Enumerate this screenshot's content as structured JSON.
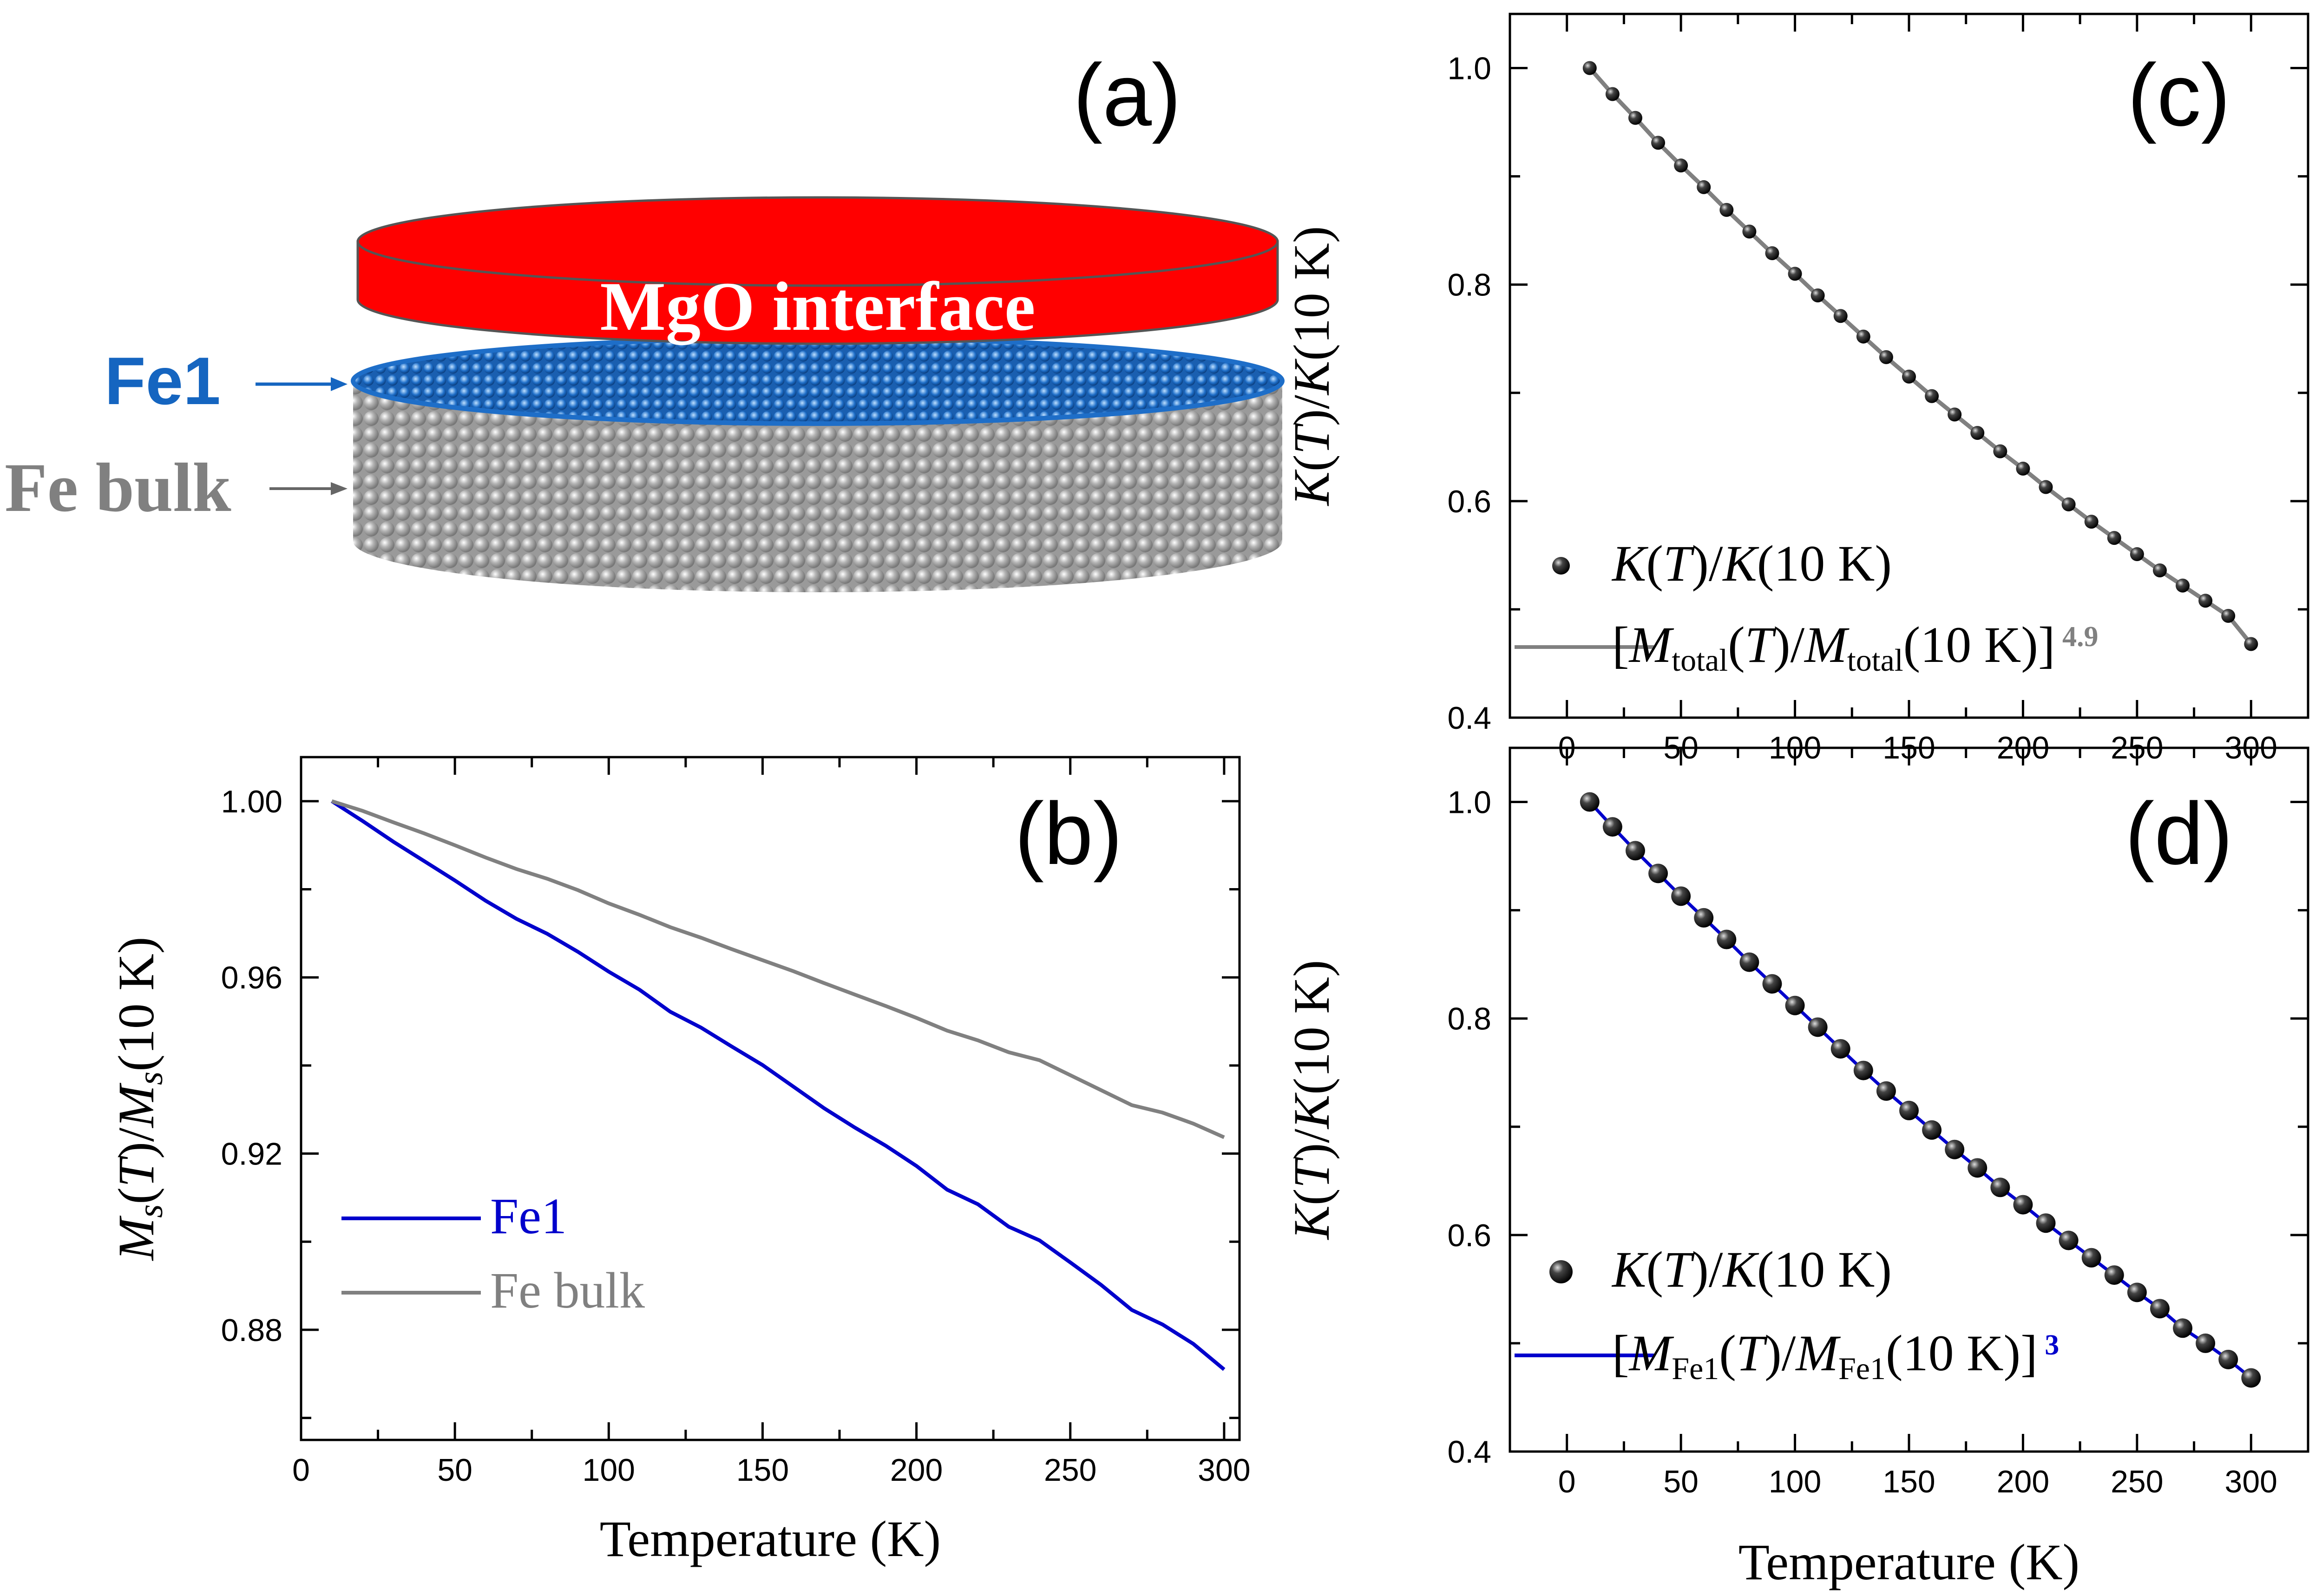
{
  "colors": {
    "fe1": "#0000cc",
    "fe1_label": "#1565c0",
    "bulk": "#808080",
    "mgo": "#ff0000",
    "disc_blue": "#1e6ec8",
    "sphere": "#c8c8c8",
    "axis": "#000000"
  },
  "panel_a": {
    "letter": "(a)",
    "mgo_label": "MgO interface",
    "fe1_label": "Fe1",
    "bulk_label": "Fe bulk"
  },
  "chart_data": [
    {
      "id": "b",
      "type": "line",
      "letter": "(b)",
      "xlabel": "Temperature (K)",
      "ylabel": {
        "parts": [
          "M",
          "s",
          "(T)/M",
          "s",
          "(10 K)"
        ]
      },
      "xlim": [
        0,
        305
      ],
      "ylim": [
        0.855,
        1.01
      ],
      "xticks": [
        0,
        50,
        100,
        150,
        200,
        250,
        300
      ],
      "yticks": [
        0.88,
        0.92,
        0.96,
        1.0
      ],
      "ytick_labels": [
        "0.88",
        "0.92",
        "0.96",
        "1.00"
      ],
      "legend_position": "bottom-left",
      "x": [
        10,
        20,
        30,
        40,
        50,
        60,
        70,
        80,
        90,
        100,
        110,
        120,
        130,
        140,
        150,
        160,
        170,
        180,
        190,
        200,
        210,
        220,
        230,
        240,
        250,
        260,
        270,
        280,
        290,
        300
      ],
      "series": [
        {
          "name": "Fe1",
          "color": "#0000cc",
          "values": [
            1.0,
            0.9955,
            0.9908,
            0.9864,
            0.982,
            0.9774,
            0.9733,
            0.9699,
            0.9658,
            0.9613,
            0.9572,
            0.9522,
            0.9486,
            0.9443,
            0.9401,
            0.9352,
            0.9303,
            0.9259,
            0.9218,
            0.9172,
            0.9118,
            0.9085,
            0.9034,
            0.9003,
            0.8953,
            0.8902,
            0.8845,
            0.8812,
            0.8768,
            0.871
          ]
        },
        {
          "name": "Fe bulk",
          "color": "#808080",
          "values": [
            1.0,
            0.9978,
            0.9952,
            0.9927,
            0.99,
            0.9872,
            0.9846,
            0.9824,
            0.9798,
            0.9768,
            0.9742,
            0.9714,
            0.969,
            0.9664,
            0.9639,
            0.9614,
            0.9587,
            0.9561,
            0.9535,
            0.9508,
            0.9479,
            0.9457,
            0.943,
            0.9412,
            0.9378,
            0.9344,
            0.931,
            0.9293,
            0.9268,
            0.9237
          ]
        }
      ]
    },
    {
      "id": "c",
      "type": "scatter",
      "letter": "(c)",
      "ylabel": {
        "parts": [
          "K",
          "(",
          "T",
          ")/",
          "K",
          "(10 K)"
        ]
      },
      "xlim": [
        -25,
        325
      ],
      "ylim": [
        0.4,
        1.05
      ],
      "xticks": [
        0,
        50,
        100,
        150,
        200,
        250,
        300
      ],
      "yticks": [
        0.4,
        0.6,
        0.8,
        1.0
      ],
      "ytick_labels": [
        "0.4",
        "0.6",
        "0.8",
        "1.0"
      ],
      "legend_position": "bottom-left",
      "legend": {
        "points_label": {
          "parts": [
            "K",
            "(",
            "T",
            ")/",
            "K",
            "(10 K)"
          ]
        },
        "line_label": {
          "parts": [
            "[",
            "M",
            "total",
            "(",
            "T",
            ")/",
            "M",
            "total",
            "(10 K)]"
          ],
          "exponent": "4.9"
        }
      },
      "x": [
        10,
        20,
        30,
        40,
        50,
        60,
        70,
        80,
        90,
        100,
        110,
        120,
        130,
        140,
        150,
        160,
        170,
        180,
        190,
        200,
        210,
        220,
        230,
        240,
        250,
        260,
        270,
        280,
        290,
        300
      ],
      "series": [
        {
          "name": "K(T)/K(10 K)",
          "color": "#000000",
          "marker": "sphere-small",
          "values": [
            1.0,
            0.976,
            0.954,
            0.931,
            0.91,
            0.89,
            0.869,
            0.849,
            0.829,
            0.81,
            0.79,
            0.771,
            0.752,
            0.733,
            0.715,
            0.697,
            0.68,
            0.663,
            0.646,
            0.63,
            0.613,
            0.597,
            0.581,
            0.566,
            0.551,
            0.536,
            0.522,
            0.508,
            0.494,
            0.468
          ]
        },
        {
          "name": "[Mtotal(T)/Mtotal(10 K)]4.9",
          "color": "#808080",
          "style": "line",
          "values": [
            1.0,
            0.976,
            0.954,
            0.931,
            0.91,
            0.89,
            0.869,
            0.849,
            0.829,
            0.81,
            0.79,
            0.771,
            0.752,
            0.733,
            0.715,
            0.697,
            0.68,
            0.663,
            0.646,
            0.63,
            0.613,
            0.597,
            0.581,
            0.566,
            0.551,
            0.536,
            0.522,
            0.508,
            0.494,
            0.468
          ]
        }
      ]
    },
    {
      "id": "d",
      "type": "scatter",
      "letter": "(d)",
      "xlabel": "Temperature (K)",
      "ylabel": {
        "parts": [
          "K",
          "(",
          "T",
          ")/",
          "K",
          "(10 K)"
        ]
      },
      "xlim": [
        -25,
        325
      ],
      "ylim": [
        0.4,
        1.05
      ],
      "xticks": [
        0,
        50,
        100,
        150,
        200,
        250,
        300
      ],
      "yticks": [
        0.4,
        0.6,
        0.8,
        1.0
      ],
      "ytick_labels": [
        "0.4",
        "0.6",
        "0.8",
        "1.0"
      ],
      "legend_position": "bottom-left",
      "legend": {
        "points_label": {
          "parts": [
            "K",
            "(",
            "T",
            ")/",
            "K",
            "(10 K)"
          ]
        },
        "line_label": {
          "parts": [
            "[",
            "M",
            "Fe1",
            "(",
            "T",
            ")/",
            "M",
            "Fe1",
            "(10 K)]"
          ],
          "exponent": "3"
        }
      },
      "x": [
        10,
        20,
        30,
        40,
        50,
        60,
        70,
        80,
        90,
        100,
        110,
        120,
        130,
        140,
        150,
        160,
        170,
        180,
        190,
        200,
        210,
        220,
        230,
        240,
        250,
        260,
        270,
        280,
        290,
        300
      ],
      "series": [
        {
          "name": "K(T)/K(10 K)",
          "color": "#000000",
          "marker": "sphere-large",
          "values": [
            1.0,
            0.977,
            0.955,
            0.934,
            0.913,
            0.893,
            0.873,
            0.852,
            0.832,
            0.812,
            0.792,
            0.772,
            0.752,
            0.733,
            0.715,
            0.697,
            0.679,
            0.662,
            0.644,
            0.628,
            0.611,
            0.595,
            0.579,
            0.563,
            0.547,
            0.532,
            0.514,
            0.5,
            0.485,
            0.468
          ]
        },
        {
          "name": "[MFe1(T)/MFe1(10 K)]3",
          "color": "#0000cc",
          "style": "line",
          "values": [
            1.0,
            0.977,
            0.955,
            0.934,
            0.913,
            0.893,
            0.873,
            0.852,
            0.832,
            0.812,
            0.792,
            0.772,
            0.752,
            0.733,
            0.715,
            0.697,
            0.679,
            0.662,
            0.644,
            0.628,
            0.611,
            0.595,
            0.579,
            0.563,
            0.547,
            0.532,
            0.514,
            0.5,
            0.485,
            0.468
          ]
        }
      ]
    }
  ]
}
